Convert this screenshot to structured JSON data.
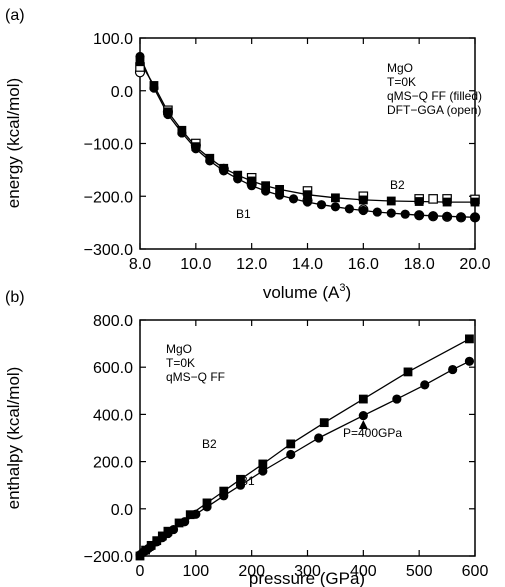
{
  "chart_data": [
    {
      "panel_label": "(a)",
      "type": "scatter",
      "xlabel_main": "volume (A",
      "xlabel_sup": "3",
      "xlabel_end": ")",
      "ylabel": "energy (kcal/mol)",
      "xlim": [
        8.0,
        20.0
      ],
      "ylim": [
        -300.0,
        100.0
      ],
      "xticks": [
        8.0,
        10.0,
        12.0,
        14.0,
        16.0,
        18.0,
        20.0
      ],
      "yticks": [
        100.0,
        0.0,
        -100.0,
        -200.0,
        -300.0
      ],
      "xtick_labels": [
        "8.0",
        "10.0",
        "12.0",
        "14.0",
        "16.0",
        "18.0",
        "20.0"
      ],
      "ytick_labels": [
        "100.0",
        "0.0",
        "−100.0",
        "−200.0",
        "−300.0"
      ],
      "legend_lines": [
        "MgO",
        "T=0K",
        "qMS−Q FF (filled)",
        "DFT−GGA (open)"
      ],
      "legend_placement": "top-right",
      "annotations": [
        "B2",
        "B1"
      ],
      "series": [
        {
          "name": "B1",
          "marker": "circle",
          "filled": {
            "x": [
              8.0,
              8.5,
              9.0,
              9.5,
              10.0,
              10.5,
              11.0,
              11.5,
              12.0,
              12.5,
              13.0,
              13.5,
              14.0,
              14.5,
              15.0,
              15.5,
              16.0,
              16.5,
              17.0,
              17.5,
              18.0,
              18.5,
              19.0,
              19.5,
              20.0
            ],
            "y": [
              65,
              5,
              -45,
              -80,
              -110,
              -133,
              -152,
              -167,
              -180,
              -190,
              -198,
              -205,
              -211,
              -216,
              -220,
              -224,
              -227,
              -230,
              -232,
              -234,
              -236,
              -237,
              -238,
              -239,
              -240
            ]
          },
          "open": {
            "x": [
              8.0,
              9.0,
              10.0,
              11.0,
              12.0,
              14.0,
              16.0,
              18.0,
              18.5,
              19.0,
              19.5,
              20.0
            ],
            "y": [
              35,
              -40,
              -103,
              -148,
              -177,
              -208,
              -225,
              -236,
              -238,
              -239,
              -240,
              -240
            ]
          }
        },
        {
          "name": "B2",
          "marker": "square",
          "filled": {
            "x": [
              8.0,
              8.5,
              9.0,
              9.5,
              10.0,
              10.5,
              11.0,
              11.5,
              12.0,
              12.5,
              13.0,
              14.0,
              15.0,
              16.0,
              17.0,
              18.0,
              19.0,
              20.0
            ],
            "y": [
              55,
              10,
              -40,
              -75,
              -106,
              -128,
              -147,
              -160,
              -171,
              -180,
              -187,
              -197,
              -203,
              -207,
              -209,
              -210,
              -211,
              -211
            ]
          },
          "open": {
            "x": [
              8.0,
              9.0,
              10.0,
              12.0,
              14.0,
              16.0,
              18.0,
              18.5,
              19.0,
              20.0
            ],
            "y": [
              45,
              -37,
              -100,
              -165,
              -190,
              -200,
              -205,
              -205,
              -205,
              -206
            ]
          }
        }
      ]
    },
    {
      "panel_label": "(b)",
      "type": "line",
      "xlabel": "pressure (GPa)",
      "ylabel": "enthalpy (kcal/mol)",
      "xlim": [
        0,
        600
      ],
      "ylim": [
        -200.0,
        800.0
      ],
      "xticks": [
        0,
        100,
        200,
        300,
        400,
        500,
        600
      ],
      "yticks": [
        800.0,
        600.0,
        400.0,
        200.0,
        0.0,
        -200.0
      ],
      "xtick_labels": [
        "0",
        "100",
        "200",
        "300",
        "400",
        "500",
        "600"
      ],
      "ytick_labels": [
        "800.0",
        "600.0",
        "400.0",
        "200.0",
        "0.0",
        "−200.0"
      ],
      "legend_lines": [
        "MgO",
        "T=0K",
        "qMS−Q FF"
      ],
      "legend_placement": "top-left",
      "annotations": [
        "B2",
        "B1",
        "P=400GPa"
      ],
      "marker_point": {
        "x": 400,
        "y": 355
      },
      "series": [
        {
          "name": "B1",
          "marker": "circle",
          "x": [
            0,
            5,
            10,
            15,
            20,
            30,
            40,
            50,
            60,
            80,
            100,
            120,
            150,
            180,
            220,
            270,
            320,
            400,
            460,
            510,
            560,
            590
          ],
          "y": [
            -195,
            -185,
            -178,
            -168,
            -160,
            -140,
            -122,
            -105,
            -88,
            -55,
            -23,
            8,
            55,
            100,
            160,
            230,
            300,
            395,
            465,
            525,
            590,
            625
          ]
        },
        {
          "name": "B2",
          "marker": "square",
          "x": [
            0,
            10,
            20,
            30,
            40,
            50,
            70,
            90,
            120,
            150,
            180,
            220,
            270,
            330,
            400,
            480,
            590
          ],
          "y": [
            -200,
            -175,
            -155,
            -135,
            -115,
            -95,
            -60,
            -25,
            25,
            75,
            125,
            190,
            275,
            365,
            465,
            580,
            720
          ]
        }
      ]
    }
  ]
}
